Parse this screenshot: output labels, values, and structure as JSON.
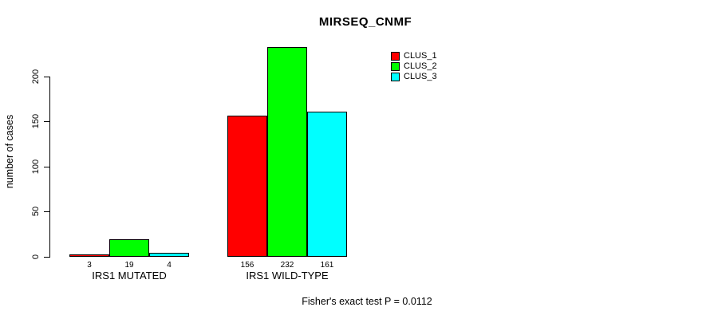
{
  "chart_data": {
    "type": "bar",
    "title": "MIRSEQ_CNMF",
    "xlabel": "",
    "ylabel": "number of cases",
    "categories": [
      "IRS1 MUTATED",
      "IRS1 WILD-TYPE"
    ],
    "series": [
      {
        "name": "CLUS_1",
        "color": "#ff0000",
        "values": [
          3,
          156
        ]
      },
      {
        "name": "CLUS_2",
        "color": "#00ff00",
        "values": [
          19,
          232
        ]
      },
      {
        "name": "CLUS_3",
        "color": "#00ffff",
        "values": [
          4,
          161
        ]
      }
    ],
    "bar_value_labels": [
      [
        3,
        19,
        4
      ],
      [
        156,
        232,
        161
      ]
    ],
    "yticks": [
      0,
      50,
      100,
      150,
      200
    ],
    "ylim": [
      0,
      235
    ],
    "grid": false,
    "legend_position": "top-right",
    "annotation": "Fisher's exact test P = 0.0112"
  }
}
